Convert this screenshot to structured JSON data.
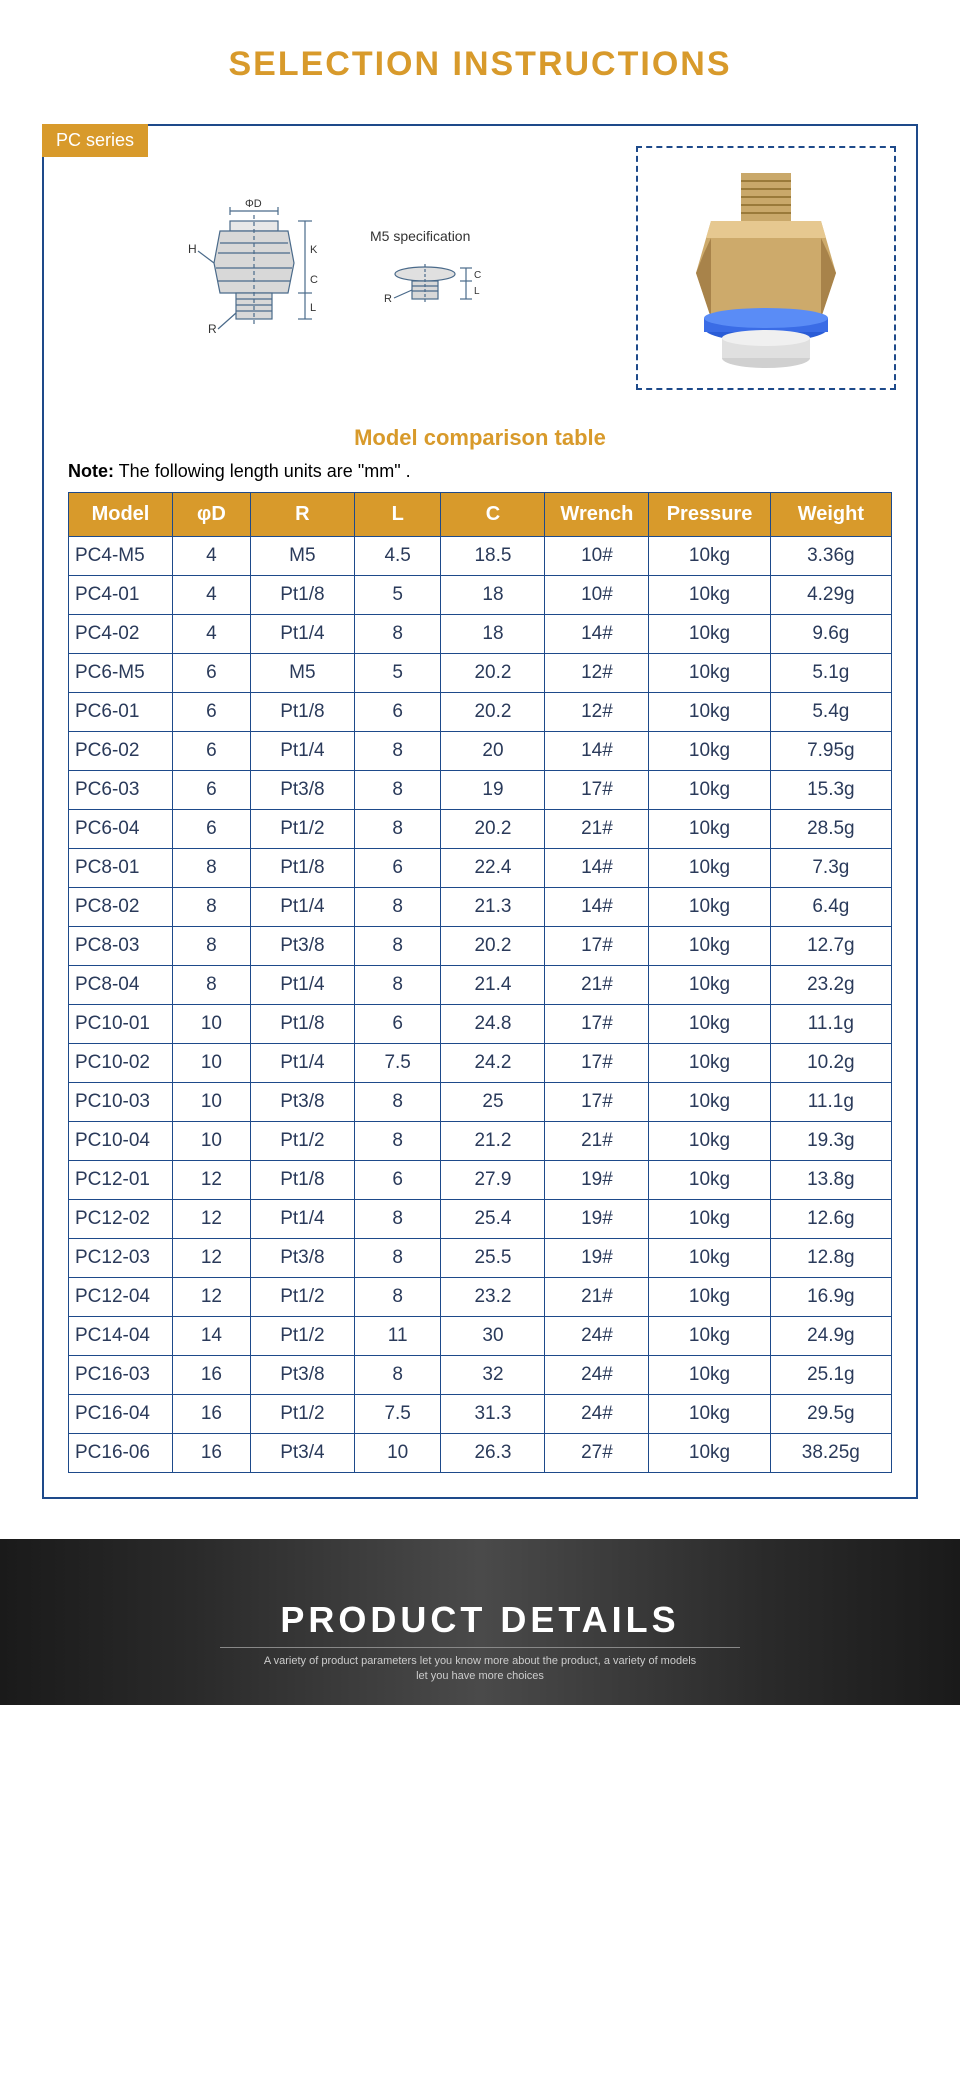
{
  "title": "SELECTION INSTRUCTIONS",
  "series_label": "PC series",
  "spec_label": "M5 specification",
  "subtitle": "Model comparison table",
  "note_label": "Note:",
  "note_text": " The following length units are \"mm\" .",
  "table": {
    "columns": [
      "Model",
      "φD",
      "R",
      "L",
      "C",
      "Wrench",
      "Pressure",
      "Weight"
    ],
    "col_widths": [
      "12%",
      "9%",
      "12%",
      "10%",
      "12%",
      "12%",
      "14%",
      "14%"
    ],
    "header_bg": "#d89a2b",
    "header_color": "#ffffff",
    "border_color": "#1e4a8a",
    "rows": [
      [
        "PC4-M5",
        "4",
        "M5",
        "4.5",
        "18.5",
        "10#",
        "10kg",
        "3.36g"
      ],
      [
        "PC4-01",
        "4",
        "Pt1/8",
        "5",
        "18",
        "10#",
        "10kg",
        "4.29g"
      ],
      [
        "PC4-02",
        "4",
        "Pt1/4",
        "8",
        "18",
        "14#",
        "10kg",
        "9.6g"
      ],
      [
        "PC6-M5",
        "6",
        "M5",
        "5",
        "20.2",
        "12#",
        "10kg",
        "5.1g"
      ],
      [
        "PC6-01",
        "6",
        "Pt1/8",
        "6",
        "20.2",
        "12#",
        "10kg",
        "5.4g"
      ],
      [
        "PC6-02",
        "6",
        "Pt1/4",
        "8",
        "20",
        "14#",
        "10kg",
        "7.95g"
      ],
      [
        "PC6-03",
        "6",
        "Pt3/8",
        "8",
        "19",
        "17#",
        "10kg",
        "15.3g"
      ],
      [
        "PC6-04",
        "6",
        "Pt1/2",
        "8",
        "20.2",
        "21#",
        "10kg",
        "28.5g"
      ],
      [
        "PC8-01",
        "8",
        "Pt1/8",
        "6",
        "22.4",
        "14#",
        "10kg",
        "7.3g"
      ],
      [
        "PC8-02",
        "8",
        "Pt1/4",
        "8",
        "21.3",
        "14#",
        "10kg",
        "6.4g"
      ],
      [
        "PC8-03",
        "8",
        "Pt3/8",
        "8",
        "20.2",
        "17#",
        "10kg",
        "12.7g"
      ],
      [
        "PC8-04",
        "8",
        "Pt1/4",
        "8",
        "21.4",
        "21#",
        "10kg",
        "23.2g"
      ],
      [
        "PC10-01",
        "10",
        "Pt1/8",
        "6",
        "24.8",
        "17#",
        "10kg",
        "11.1g"
      ],
      [
        "PC10-02",
        "10",
        "Pt1/4",
        "7.5",
        "24.2",
        "17#",
        "10kg",
        "10.2g"
      ],
      [
        "PC10-03",
        "10",
        "Pt3/8",
        "8",
        "25",
        "17#",
        "10kg",
        "11.1g"
      ],
      [
        "PC10-04",
        "10",
        "Pt1/2",
        "8",
        "21.2",
        "21#",
        "10kg",
        "19.3g"
      ],
      [
        "PC12-01",
        "12",
        "Pt1/8",
        "6",
        "27.9",
        "19#",
        "10kg",
        "13.8g"
      ],
      [
        "PC12-02",
        "12",
        "Pt1/4",
        "8",
        "25.4",
        "19#",
        "10kg",
        "12.6g"
      ],
      [
        "PC12-03",
        "12",
        "Pt3/8",
        "8",
        "25.5",
        "19#",
        "10kg",
        "12.8g"
      ],
      [
        "PC12-04",
        "12",
        "Pt1/2",
        "8",
        "23.2",
        "21#",
        "10kg",
        "16.9g"
      ],
      [
        "PC14-04",
        "14",
        "Pt1/2",
        "11",
        "30",
        "24#",
        "10kg",
        "24.9g"
      ],
      [
        "PC16-03",
        "16",
        "Pt3/8",
        "8",
        "32",
        "24#",
        "10kg",
        "25.1g"
      ],
      [
        "PC16-04",
        "16",
        "Pt1/2",
        "7.5",
        "31.3",
        "24#",
        "10kg",
        "29.5g"
      ],
      [
        "PC16-06",
        "16",
        "Pt3/4",
        "10",
        "26.3",
        "27#",
        "10kg",
        "38.25g"
      ]
    ]
  },
  "footer": {
    "title": "PRODUCT DETAILS",
    "sub1": "A variety of product parameters let you know more about the product, a variety of models",
    "sub2": "let you have more choices"
  },
  "colors": {
    "accent": "#d89a2b",
    "border": "#1e4a8a",
    "text": "#2a3a5a"
  }
}
